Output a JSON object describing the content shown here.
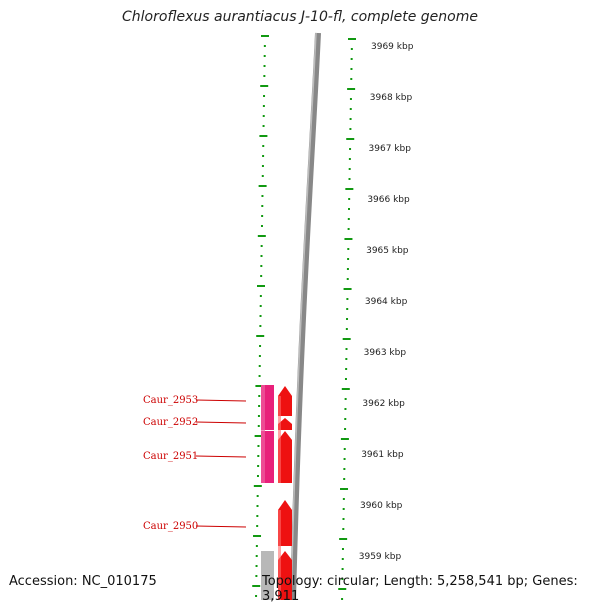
{
  "title": "Chloroflexus aurantiacus J-10-fl, complete genome",
  "footer": {
    "accession": "Accession: NC_010175",
    "topology": "Topology: circular; Length: 5,258,541 bp; Genes: 3,911"
  },
  "colors": {
    "tick_green": "#119911",
    "backbone_gray": "#888888",
    "gene_red": "#ee1111",
    "gene_pink": "#e8207a",
    "gene_gray": "#b8b8b8",
    "label_red": "#cc0000"
  },
  "scale_ticks": [
    {
      "label": "3969 kbp"
    },
    {
      "label": "3968 kbp"
    },
    {
      "label": "3967 kbp"
    },
    {
      "label": "3966 kbp"
    },
    {
      "label": "3965 kbp"
    },
    {
      "label": "3964 kbp"
    },
    {
      "label": "3963 kbp"
    },
    {
      "label": "3962 kbp"
    },
    {
      "label": "3961 kbp"
    },
    {
      "label": "3960 kbp"
    },
    {
      "label": "3959 kbp"
    }
  ],
  "gene_labels": [
    {
      "label": "Caur_2953"
    },
    {
      "label": "Caur_2952"
    },
    {
      "label": "Caur_2951"
    },
    {
      "label": "Caur_2950"
    }
  ]
}
